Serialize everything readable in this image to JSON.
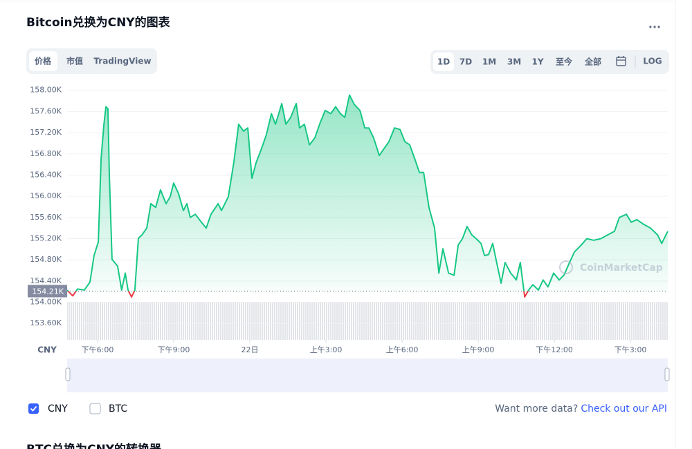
{
  "header": {
    "title": "Bitcoin兑换为CNY的图表",
    "menu": "..."
  },
  "tabs": [
    "价格",
    "市值",
    "TradingView"
  ],
  "ranges": [
    "1D",
    "7D",
    "1M",
    "3M",
    "1Y",
    "至今",
    "全部",
    "LOG"
  ],
  "chart_data": {
    "type": "line",
    "axis_unit": "CNY",
    "watermark": "CoinMarketCap",
    "x": [
      16.8,
      17.02,
      17.21,
      17.48,
      17.7,
      17.86,
      18.03,
      18.14,
      18.25,
      18.33,
      18.41,
      18.46,
      18.57,
      18.79,
      18.95,
      19.09,
      19.2,
      19.34,
      19.47,
      19.61,
      19.75,
      19.94,
      20.1,
      20.29,
      20.48,
      20.7,
      20.86,
      21.0,
      21.19,
      21.38,
      21.52,
      21.65,
      21.85,
      22.06,
      22.28,
      22.47,
      22.75,
      22.88,
      23.15,
      23.37,
      23.56,
      23.75,
      23.92,
      24.08,
      24.25,
      24.46,
      24.65,
      24.85,
      25.01,
      25.26,
      25.42,
      25.61,
      25.83,
      25.96,
      26.15,
      26.35,
      26.56,
      26.75,
      26.97,
      27.19,
      27.38,
      27.57,
      27.74,
      27.93,
      28.12,
      28.34,
      28.53,
      28.69,
      28.88,
      29.1,
      29.29,
      29.48,
      29.7,
      29.92,
      30.11,
      30.3,
      30.52,
      30.68,
      30.85,
      31.06,
      31.28,
      31.45,
      31.61,
      31.83,
      32.05,
      32.21,
      32.38,
      32.56,
      32.75,
      32.92,
      33.11,
      33.25,
      33.41,
      33.57,
      33.74,
      33.9,
      34.06,
      34.28,
      34.5,
      34.66,
      34.83,
      34.99,
      35.15,
      35.37,
      35.56,
      35.75,
      35.97,
      36.19,
      36.38,
      36.57,
      36.79,
      37.06,
      37.28,
      37.55,
      37.83,
      38.1,
      38.37,
      38.56,
      38.84,
      39.03,
      39.25,
      39.52,
      39.79,
      40.07,
      40.23,
      40.47
    ],
    "series": [
      {
        "name": "CNY",
        "color": "#16c784",
        "down_color": "#ea3943",
        "values": [
          154227,
          154120,
          154250,
          154230,
          154380,
          154880,
          155140,
          156710,
          157360,
          157690,
          157650,
          156450,
          154810,
          154680,
          154230,
          154550,
          154230,
          154100,
          154230,
          155210,
          155270,
          155400,
          155860,
          155790,
          156120,
          155860,
          155990,
          156250,
          156050,
          155730,
          155860,
          155600,
          155660,
          155530,
          155400,
          155660,
          155860,
          155730,
          155990,
          156640,
          157360,
          157230,
          157290,
          156340,
          156640,
          156900,
          157160,
          157560,
          157360,
          157750,
          157360,
          157490,
          157750,
          157290,
          157360,
          156970,
          157100,
          157360,
          157620,
          157560,
          157690,
          157560,
          157490,
          157910,
          157730,
          157620,
          157290,
          157290,
          157100,
          156770,
          156900,
          157030,
          157290,
          157260,
          157030,
          156970,
          156680,
          156450,
          156450,
          155790,
          155400,
          154550,
          155010,
          154550,
          154510,
          155080,
          155200,
          155430,
          155270,
          155200,
          155110,
          154880,
          154900,
          155110,
          154720,
          154360,
          154750,
          154550,
          154420,
          154750,
          154100,
          154230,
          154330,
          154230,
          154420,
          154290,
          154550,
          154420,
          154510,
          154720,
          154950,
          155080,
          155200,
          155170,
          155200,
          155270,
          155340,
          155600,
          155660,
          155510,
          155560,
          155470,
          155400,
          155270,
          155110,
          155340
        ]
      }
    ],
    "reference": {
      "value": 154210,
      "label": "154.21K"
    },
    "xlim": [
      16.8,
      40.47
    ],
    "xticks": [
      {
        "value": 18,
        "label": "下午6:00"
      },
      {
        "value": 21,
        "label": "下午9:00"
      },
      {
        "value": 24,
        "label": "22日"
      },
      {
        "value": 27,
        "label": "上午3:00"
      },
      {
        "value": 30,
        "label": "上午6:00"
      },
      {
        "value": 33,
        "label": "上午9:00"
      },
      {
        "value": 36,
        "label": "下午12:00"
      },
      {
        "value": 39,
        "label": "下午3:00"
      }
    ],
    "ylim": [
      153290,
      158140
    ],
    "yticks": [
      {
        "value": 153600,
        "label": "153.60K"
      },
      {
        "value": 154000,
        "label": "154.00K"
      },
      {
        "value": 154400,
        "label": "154.40K"
      },
      {
        "value": 154800,
        "label": "154.80K"
      },
      {
        "value": 155200,
        "label": "155.20K"
      },
      {
        "value": 155600,
        "label": "155.60K"
      },
      {
        "value": 156000,
        "label": "156.00K"
      },
      {
        "value": 156400,
        "label": "156.40K"
      },
      {
        "value": 156800,
        "label": "156.80K"
      },
      {
        "value": 157200,
        "label": "157.20K"
      },
      {
        "value": 157600,
        "label": "157.60K"
      },
      {
        "value": 158000,
        "label": "158.00K"
      }
    ],
    "grid": true
  },
  "toggles": [
    "CNY",
    "BTC"
  ],
  "footer": {
    "prompt": "Want more data?",
    "link": "Check out our API"
  },
  "next_section": "BTC兑换为CNY的转换器"
}
